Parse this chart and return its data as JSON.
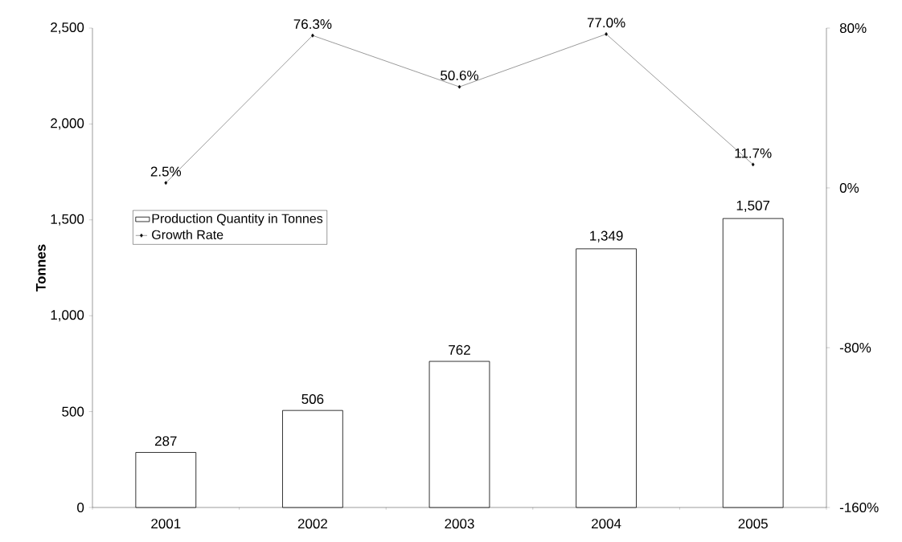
{
  "chart_data": {
    "type": "bar",
    "categories": [
      "2001",
      "2002",
      "2003",
      "2004",
      "2005"
    ],
    "ylabel": "Tonnes",
    "ylim": [
      0,
      2500
    ],
    "yticks": [
      0,
      500,
      {
        "value": 1000,
        "label": "1,000"
      },
      {
        "value": 1500,
        "label": "1,500"
      },
      {
        "value": 2000,
        "label": "2,000"
      },
      {
        "value": 2500,
        "label": "2,500"
      }
    ],
    "y2lim": [
      -160,
      80
    ],
    "y2ticks": [
      {
        "value": -160,
        "label": "-160%"
      },
      {
        "value": -80,
        "label": "-80%"
      },
      {
        "value": 0,
        "label": "0%"
      },
      {
        "value": 80,
        "label": "80%"
      }
    ],
    "legend": "left",
    "marker": "diamond",
    "line_style": "solid",
    "series": [
      {
        "name": "Production Quantity in Tonnes",
        "color": "#ffffff",
        "values": [
          287,
          506,
          762,
          1349,
          1507
        ],
        "value_labels": [
          "287",
          "506",
          "762",
          "1,349",
          "1,507"
        ]
      },
      {
        "name": "Growth Rate",
        "type": "line",
        "axis": "y2",
        "color": "#000000",
        "values": [
          2.5,
          76.3,
          50.6,
          77.0,
          11.7
        ],
        "value_labels": [
          "2.5%",
          "76.3%",
          "50.6%",
          "77.0%",
          "11.7%"
        ]
      }
    ]
  }
}
